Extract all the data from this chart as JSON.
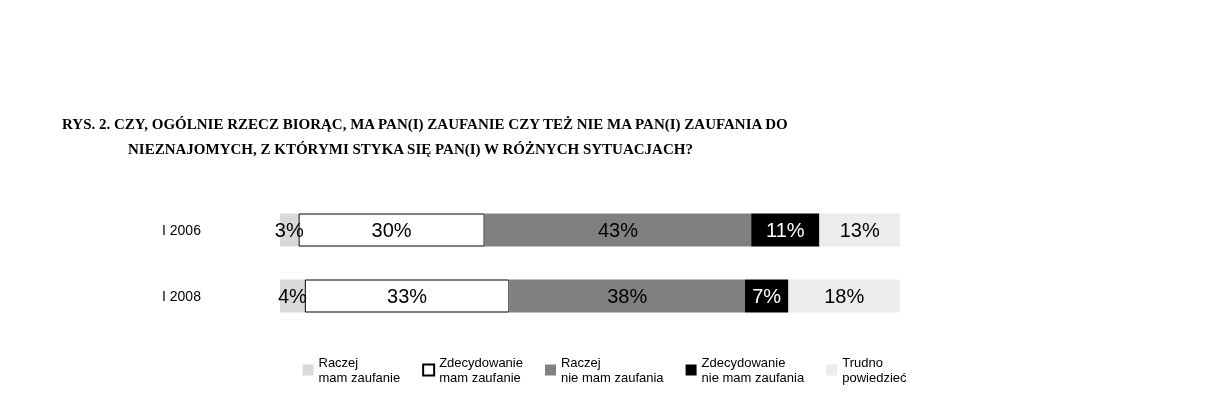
{
  "chart_data": {
    "type": "bar",
    "orientation": "horizontal",
    "stacked": true,
    "title": "RYS. 2. CZY, OGÓLNIE RZECZ BIORĄC, MA PAN(I) ZAUFANIE CZY TEŻ NIE MA PAN(I) ZAUFANIA DO NIEZNAJOMYCH, Z KTÓRYMI STYKA SIĘ PAN(I) W RÓŻNYCH SYTUACJACH?",
    "categories": [
      "I 2006",
      "I 2008"
    ],
    "series": [
      {
        "name": "Raczej\nmam zaufanie",
        "color": "#d9d9d9",
        "values": [
          3,
          4
        ],
        "value_labels": [
          "3%",
          "4%"
        ]
      },
      {
        "name": "Zdecydowanie\nmam zaufanie",
        "color": "#ffffff",
        "values": [
          30,
          33
        ],
        "value_labels": [
          "30%",
          "33%"
        ]
      },
      {
        "name": "Raczej\nnie mam zaufania",
        "color": "#808080",
        "values": [
          43,
          38
        ],
        "value_labels": [
          "43%",
          "38%"
        ]
      },
      {
        "name": "Zdecydowanie\nnie mam zaufania",
        "color": "#000000",
        "values": [
          11,
          7
        ],
        "value_labels": [
          "11%",
          "7%"
        ]
      },
      {
        "name": "Trudno\npowiedzieć",
        "color": "#ececec",
        "values": [
          13,
          18
        ],
        "value_labels": [
          "13%",
          "18%"
        ]
      }
    ],
    "legend": "bottom"
  }
}
